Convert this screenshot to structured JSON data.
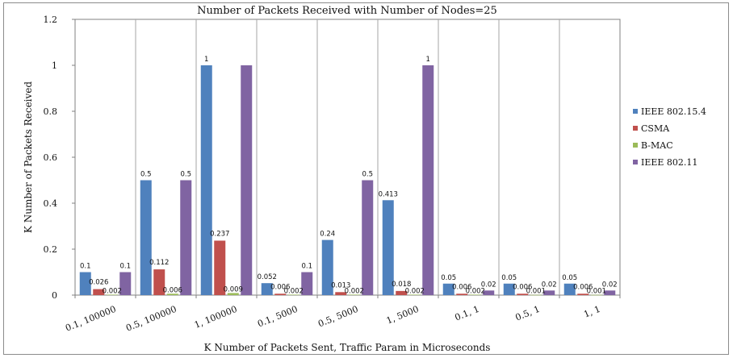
{
  "chart_data": {
    "type": "bar",
    "title": "Number of Packets Received with Number of Nodes=25",
    "xlabel": "K Number of Packets Sent, Traffic Param in Microseconds",
    "ylabel": "K Number of Packets Received",
    "ylim": [
      0,
      1.2
    ],
    "yticks": [
      "0",
      "0.2",
      "0.4",
      "0.6",
      "0.8",
      "1",
      "1.2"
    ],
    "grid": "vertical category separators",
    "legend_position": "right",
    "categories": [
      "0.1, 100000",
      "0.5, 100000",
      "1, 100000",
      "0.1, 5000",
      "0.5, 5000",
      "1, 5000",
      "0.1, 1",
      "0.5, 1",
      "1, 1"
    ],
    "series": [
      {
        "name": "IEEE 802.15.4",
        "color": "#4f81bd",
        "values": [
          0.1,
          0.5,
          1,
          0.052,
          0.24,
          0.413,
          0.05,
          0.05,
          0.05
        ],
        "labels": [
          "0.1",
          "0.5",
          "1",
          "0.052",
          "0.24",
          "0.413",
          "0.05",
          "0.05",
          "0.05"
        ]
      },
      {
        "name": "CSMA",
        "color": "#c0504d",
        "values": [
          0.026,
          0.112,
          0.237,
          0.006,
          0.013,
          0.018,
          0.006,
          0.006,
          0.006
        ],
        "labels": [
          "0.026",
          "0.112",
          "0.237",
          "0.006",
          "0.013",
          "0.018",
          "0.006",
          "0.006",
          "0.006"
        ]
      },
      {
        "name": "B-MAC",
        "color": "#9bbb59",
        "values": [
          0.002,
          0.006,
          0.009,
          0.002,
          0.002,
          0.002,
          0.002,
          0.001,
          0.001
        ],
        "labels": [
          "0.002",
          "0.006",
          "0.009",
          "0.002",
          "0.002",
          "0.002",
          "0.002",
          "0.001",
          "0.001"
        ]
      },
      {
        "name": "IEEE 802.11",
        "color": "#8064a2",
        "values": [
          0.1,
          0.5,
          1,
          0.1,
          0.5,
          1,
          0.02,
          0.02,
          0.02
        ],
        "labels": [
          "0.1",
          "0.5",
          "",
          "0.1",
          "0.5",
          "1",
          "0.02",
          "0.02",
          "0.02"
        ]
      }
    ]
  }
}
